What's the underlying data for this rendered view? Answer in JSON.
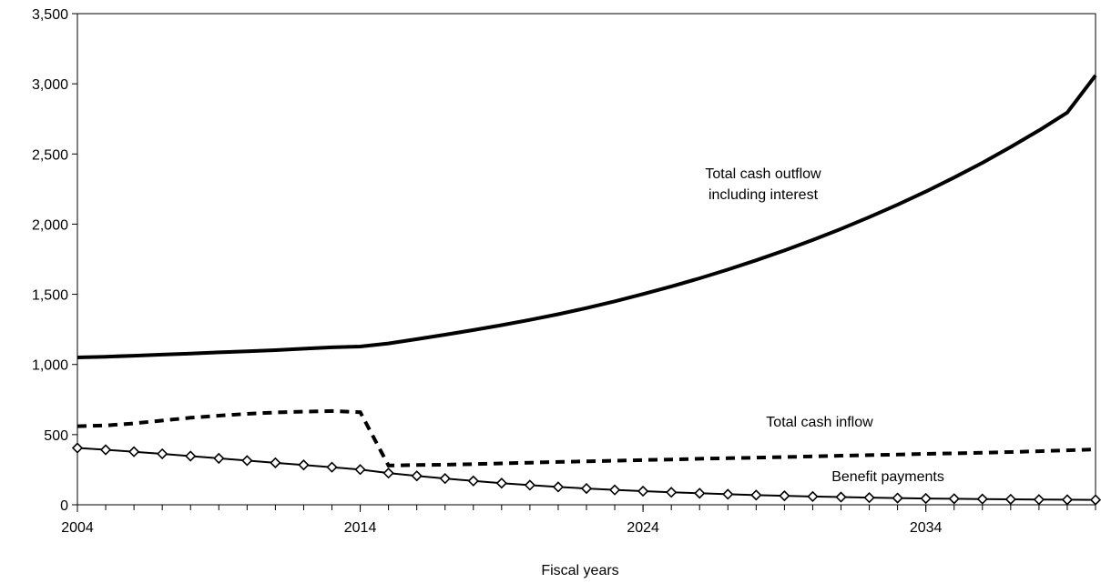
{
  "chart_data": {
    "type": "line",
    "title": "",
    "xlabel": "Fiscal years",
    "ylabel": "",
    "xlim": [
      2004,
      2040
    ],
    "ylim": [
      0,
      3500
    ],
    "x_ticks": [
      "2004",
      "2014",
      "2024",
      "2034"
    ],
    "y_ticks": [
      "0",
      "500",
      "1,000",
      "1,500",
      "2,000",
      "2,500",
      "3,000",
      "3,500"
    ],
    "grid": false,
    "legend": "none (series labeled directly on plot)",
    "x": [
      2004,
      2005,
      2006,
      2007,
      2008,
      2009,
      2010,
      2011,
      2012,
      2013,
      2014,
      2015,
      2016,
      2017,
      2018,
      2019,
      2020,
      2021,
      2022,
      2023,
      2024,
      2025,
      2026,
      2027,
      2028,
      2029,
      2030,
      2031,
      2032,
      2033,
      2034,
      2035,
      2036,
      2037,
      2038,
      2039,
      2040
    ],
    "series": [
      {
        "name": "Total cash outflow including interest",
        "style": "solid-thick",
        "color": "#000000",
        "values": [
          1050,
          1055,
          1062,
          1070,
          1078,
          1086,
          1094,
          1102,
          1112,
          1122,
          1128,
          1150,
          1180,
          1212,
          1245,
          1280,
          1318,
          1358,
          1402,
          1450,
          1502,
          1556,
          1614,
          1676,
          1742,
          1812,
          1887,
          1966,
          2050,
          2138,
          2232,
          2332,
          2437,
          2550,
          2668,
          2795,
          3060
        ]
      },
      {
        "name": "Total cash inflow",
        "style": "dashed",
        "color": "#000000",
        "values": [
          560,
          565,
          580,
          600,
          620,
          635,
          648,
          658,
          664,
          668,
          660,
          280,
          283,
          286,
          290,
          295,
          300,
          305,
          310,
          314,
          319,
          323,
          328,
          332,
          336,
          340,
          345,
          350,
          354,
          358,
          363,
          367,
          371,
          376,
          382,
          388,
          395
        ]
      },
      {
        "name": "Benefit payments",
        "style": "solid-diamond",
        "color": "#000000",
        "values": [
          405,
          392,
          378,
          363,
          347,
          331,
          315,
          299,
          284,
          268,
          251,
          226,
          206,
          187,
          170,
          154,
          140,
          127,
          116,
          106,
          97,
          89,
          82,
          75,
          69,
          64,
          59,
          55,
          51,
          48,
          45,
          43,
          41,
          39,
          37,
          36,
          35
        ]
      }
    ],
    "annotations": [
      {
        "lines": [
          "Total cash outflow",
          "including interest"
        ],
        "series": 0
      },
      {
        "lines": [
          "Total cash inflow"
        ],
        "series": 1
      },
      {
        "lines": [
          "Benefit payments"
        ],
        "series": 2
      }
    ]
  }
}
